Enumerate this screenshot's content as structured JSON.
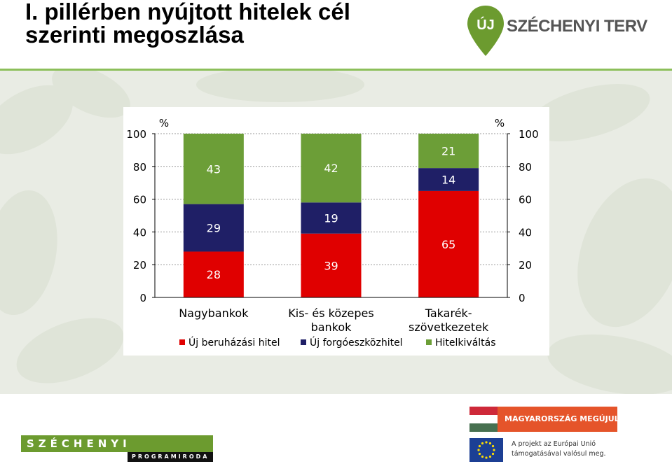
{
  "title": {
    "line1": "I. pillérben nyújtott hitelek cél",
    "line2": "szerinti megoszlása"
  },
  "top_logo": {
    "pin_text": "ÚJ",
    "brand_text": "SZÉCHENYI TERV",
    "pin_icon": "location-pin-icon"
  },
  "footer": {
    "left_logo_main": "SZÉCHENYI",
    "left_logo_sub": "PROGRAMIRODA",
    "banner_text": "MAGYARORSZÁG MEGÚJUL",
    "eu_line1": "A projekt az Európai Unió",
    "eu_line2": "támogatásával valósul meg."
  },
  "colors": {
    "title_text": "#000000",
    "divider": "#8cbf5a",
    "band": "#e9ece4",
    "brand_green": "#6c9b2f",
    "banner_orange": "#e5542a"
  },
  "chart_data": {
    "type": "bar",
    "stacked": true,
    "categories": [
      [
        "Nagybankok"
      ],
      [
        "Kis- és közepes",
        "bankok"
      ],
      [
        "Takarék-",
        "szövetkezetek"
      ]
    ],
    "series": [
      {
        "name": "Új beruházási hitel",
        "color": "#e00000",
        "values": [
          28,
          39,
          65
        ]
      },
      {
        "name": "Új forgóeszközhitel",
        "color": "#1f1f66",
        "values": [
          29,
          19,
          14
        ]
      },
      {
        "name": "Hitelkiváltás",
        "color": "#6c9e37",
        "values": [
          43,
          42,
          21
        ]
      }
    ],
    "ylim": [
      0,
      100
    ],
    "yticks": [
      0,
      20,
      40,
      60,
      80,
      100
    ],
    "y_unit_left": "%",
    "y_unit_right": "%",
    "grid": true,
    "legend": "bottom"
  }
}
